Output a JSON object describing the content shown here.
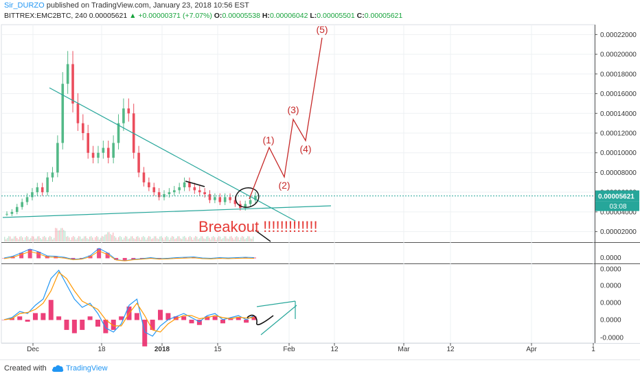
{
  "header": {
    "author": "Sir_DURZO",
    "published": "published on TradingView.com, January 23, 2018 10:56 EST",
    "symbol": "BITTREX:EMC2BTC, 240",
    "last": "0.00005621",
    "change": "▲ +0.00000371 (+7.07%)",
    "o_label": "O:",
    "o": "0.00005538",
    "h_label": "H:",
    "h": "0.00006042",
    "l_label": "L:",
    "l": "0.00005501",
    "c_label": "C:",
    "c": "0.00005621"
  },
  "footer": {
    "created_with": "Created with",
    "brand": "TradingView"
  },
  "colors": {
    "up": "#53b987",
    "down": "#eb4d5c",
    "annotation": "#c62828",
    "trendline": "#26a69a",
    "price_tag": "#26a69a",
    "macd": "#2196f3",
    "signal": "#ff9800",
    "hist": "#e91e63"
  },
  "chart_data": [
    {
      "type": "candlestick",
      "panel": "price",
      "y_ticks": [
        "0.00022000",
        "0.00020000",
        "0.00018000",
        "0.00016000",
        "0.00014000",
        "0.00012000",
        "0.00010000",
        "0.00008000",
        "0.00006000",
        "0.00004000",
        "0.00002000"
      ],
      "ylim": [
        1e-05,
        0.00023
      ],
      "x_ticks": [
        "Dec",
        "18",
        "2018",
        "15",
        "Feb",
        "12",
        "Mar",
        "12",
        "Apr",
        "1"
      ],
      "closes_approx": [
        3.8e-05,
        4e-05,
        4.5e-05,
        5e-05,
        5.5e-05,
        6e-05,
        6.5e-05,
        6e-05,
        7.5e-05,
        8e-05,
        0.00011,
        0.00017,
        0.00019,
        0.00015,
        0.00013,
        0.00012,
        0.0001,
        9.5e-05,
        0.0001,
        0.000105,
        9.5e-05,
        0.00011,
        0.00013,
        0.000145,
        0.00014,
        0.0001,
        8e-05,
        7e-05,
        6.5e-05,
        6e-05,
        5.5e-05,
        5.8e-05,
        6e-05,
        6.2e-05,
        6.5e-05,
        7e-05,
        6.5e-05,
        6.2e-05,
        6e-05,
        5.8e-05,
        5.2e-05,
        5.5e-05,
        5e-05,
        5.5e-05,
        5.2e-05,
        4.8e-05,
        4.4e-05,
        4.8e-05,
        5.2e-05,
        5.621e-05
      ],
      "last_price_tag": "0.00005621",
      "countdown_tag": "03:08",
      "wave_labels": [
        "(1)",
        "(2)",
        "(3)",
        "(4)",
        "(5)"
      ],
      "annotation": "Breakout !!!!!!!!!!!!!"
    },
    {
      "type": "line",
      "panel": "indicator-1",
      "y_ticks": [
        "0.0000"
      ],
      "series": [
        {
          "values": [
            0,
            0.5,
            1.5,
            2.6,
            1.8,
            0.6,
            0.5,
            0.2,
            -0.4,
            -0.2,
            0.7,
            2.8,
            1.5,
            -0.5,
            -0.8,
            -0.4,
            -0.2,
            0.1,
            -0.2,
            -0.1,
            0.1,
            0.2,
            0.3,
            0.0,
            -0.1,
            0.1,
            0.0,
            0.1,
            0.2,
            0.1
          ]
        }
      ]
    },
    {
      "type": "line",
      "panel": "macd",
      "y_ticks": [
        "0.0000",
        "0.0000",
        "0.0000",
        "0.0000",
        "-0.0000"
      ],
      "series": [
        {
          "values": [
            0,
            0.1,
            0.4,
            0.3,
            0.7,
            1.0,
            2.0,
            2.4,
            1.7,
            1.0,
            0.6,
            0.8,
            0.3,
            -0.4,
            -0.6,
            -0.2,
            0.7,
            1.0,
            -0.6,
            -0.8,
            -0.3,
            0.0,
            0.15,
            0.3,
            0.1,
            -0.1,
            0.2,
            0.3,
            0.0,
            0.1,
            0.2,
            0.0,
            0.2
          ]
        },
        {
          "values": [
            0,
            0.05,
            0.3,
            0.35,
            0.5,
            0.8,
            1.4,
            2.3,
            2.0,
            1.4,
            0.9,
            0.7,
            0.5,
            0.0,
            -0.3,
            -0.3,
            0.3,
            0.8,
            0.2,
            -0.5,
            -0.6,
            -0.2,
            0.05,
            0.2,
            0.2,
            0.05,
            0.1,
            0.2,
            0.1,
            0.05,
            0.12,
            0.08,
            0.1
          ]
        }
      ]
    }
  ]
}
